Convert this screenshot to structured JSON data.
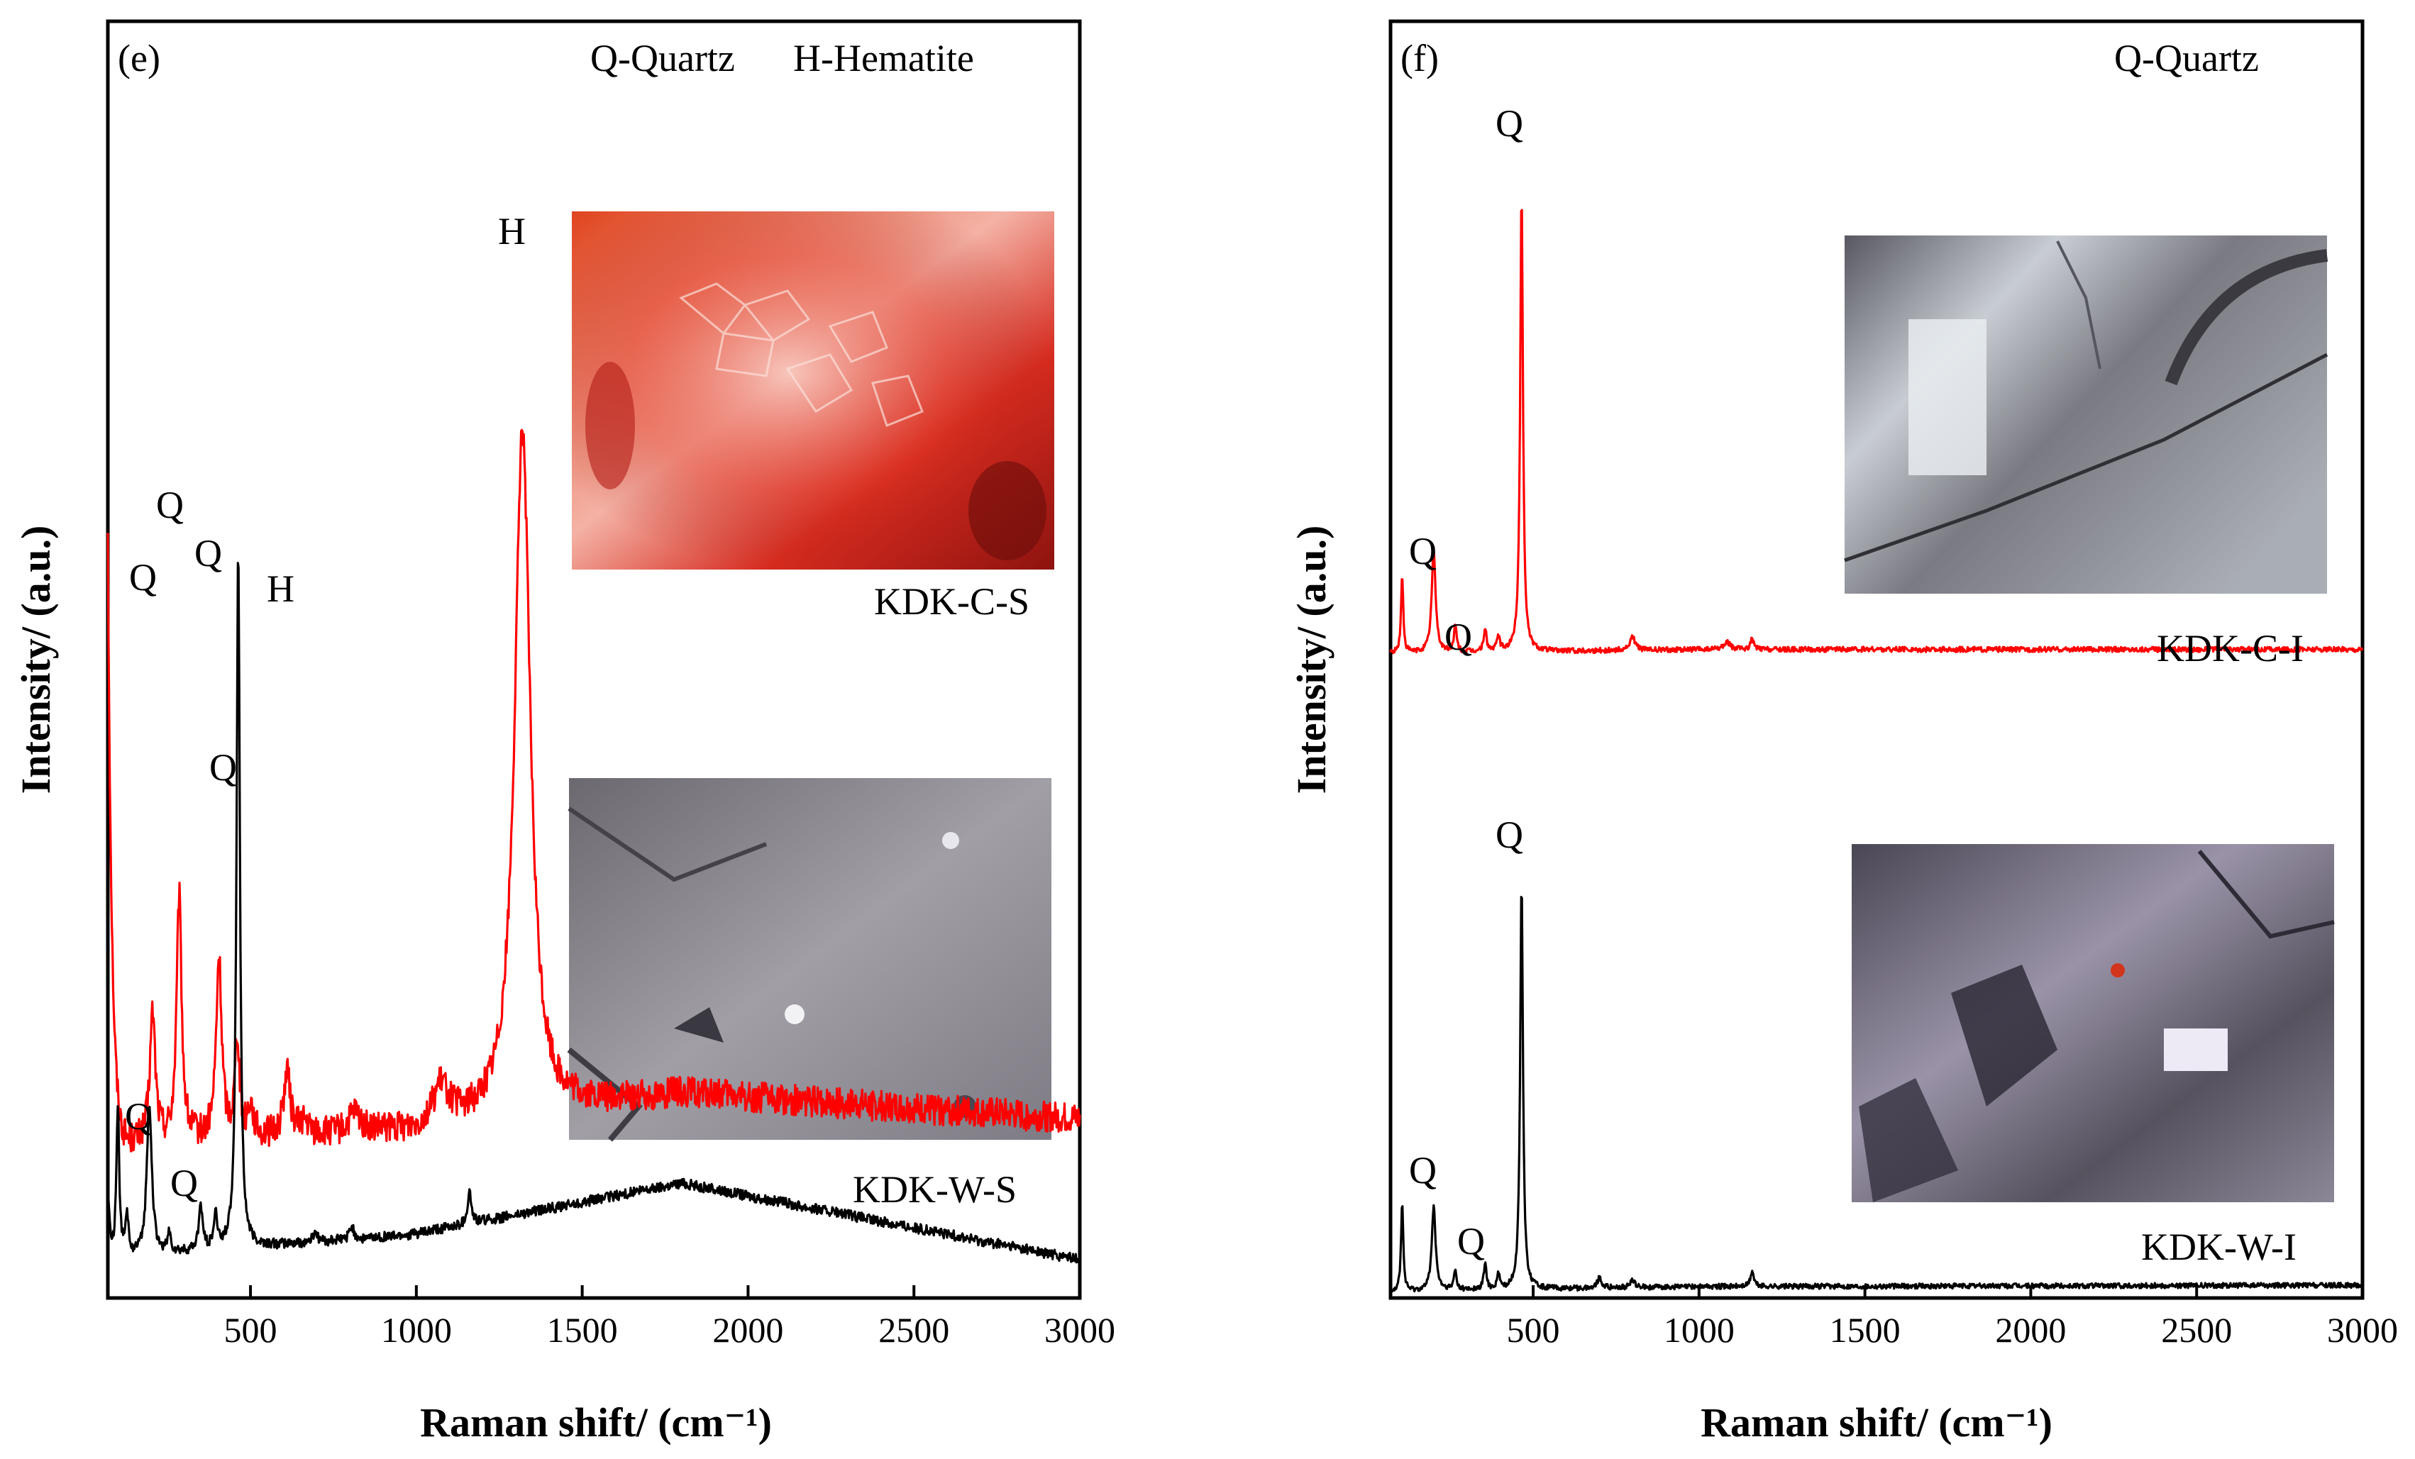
{
  "chart_data": [
    {
      "type": "line",
      "panel": "(e)",
      "legend": [
        "Q-Quartz",
        "H-Hematite"
      ],
      "xlabel": "Raman shift/ (cm⁻¹)",
      "ylabel": "Intensity/ (a.u.)",
      "xlim": [
        70,
        3000
      ],
      "xticks": [
        500,
        1000,
        1500,
        2000,
        2500,
        3000
      ],
      "series": [
        {
          "name": "KDK-C-S",
          "color": "#ff0000",
          "baseline": 0.12,
          "noise": 0.012,
          "edge": {
            "x": 70,
            "height": 0.48,
            "width": 12
          },
          "background": [
            [
              70,
              0.0
            ],
            [
              1000,
              0.01
            ],
            [
              1800,
              0.04
            ],
            [
              3000,
              0.02
            ]
          ],
          "peaks": [
            {
              "x": 205,
              "height": 0.1,
              "width": 10,
              "label": "Q"
            },
            {
              "x": 285,
              "height": 0.19,
              "width": 9,
              "label": "Q"
            },
            {
              "x": 405,
              "height": 0.14,
              "width": 10,
              "label": "Q"
            },
            {
              "x": 460,
              "height": 0.08,
              "width": 8
            },
            {
              "x": 500,
              "height": 0.025,
              "width": 10
            },
            {
              "x": 610,
              "height": 0.05,
              "width": 12,
              "label": "H"
            },
            {
              "x": 660,
              "height": 0.01,
              "width": 15
            },
            {
              "x": 815,
              "height": 0.015,
              "width": 20
            },
            {
              "x": 1075,
              "height": 0.03,
              "width": 30
            },
            {
              "x": 1320,
              "height": 0.54,
              "width": 28,
              "label": "H"
            }
          ]
        },
        {
          "name": "KDK-W-S",
          "color": "#000000",
          "baseline": 0.03,
          "noise": 0.004,
          "edge": {
            "x": 70,
            "height": 0.06,
            "width": 6
          },
          "background": [
            [
              70,
              0.0
            ],
            [
              1000,
              0.02
            ],
            [
              1800,
              0.06
            ],
            [
              3000,
              0.0
            ]
          ],
          "peaks": [
            {
              "x": 100,
              "height": 0.12,
              "width": 5
            },
            {
              "x": 128,
              "height": 0.03,
              "width": 6
            },
            {
              "x": 195,
              "height": 0.12,
              "width": 9,
              "label": "Q"
            },
            {
              "x": 255,
              "height": 0.015,
              "width": 6
            },
            {
              "x": 350,
              "height": 0.035,
              "width": 7,
              "label": "Q"
            },
            {
              "x": 395,
              "height": 0.025,
              "width": 7
            },
            {
              "x": 463,
              "height": 0.55,
              "width": 6,
              "label": "Q"
            },
            {
              "x": 695,
              "height": 0.008,
              "width": 8
            },
            {
              "x": 805,
              "height": 0.01,
              "width": 8
            },
            {
              "x": 1160,
              "height": 0.025,
              "width": 7
            }
          ]
        }
      ],
      "annotations": {
        "peak_letters": [
          "Q",
          "Q",
          "Q",
          "H",
          "H",
          "Q",
          "Q",
          "Q"
        ]
      }
    },
    {
      "type": "line",
      "panel": "(f)",
      "legend": [
        "Q-Quartz"
      ],
      "xlabel": "Raman shift/ (cm⁻¹)",
      "ylabel": "Intensity/ (a.u.)",
      "xlim": [
        70,
        3000
      ],
      "xticks": [
        500,
        1000,
        1500,
        2000,
        2500,
        3000
      ],
      "series": [
        {
          "name": "KDK-C-I",
          "color": "#ff0000",
          "baseline": 0.505,
          "noise": 0.002,
          "edge": {
            "x": 70,
            "height": 0.0,
            "width": 5
          },
          "background": [
            [
              70,
              0.0
            ],
            [
              1000,
              0.003
            ],
            [
              3000,
              0.003
            ]
          ],
          "peaks": [
            {
              "x": 105,
              "height": 0.06,
              "width": 4
            },
            {
              "x": 200,
              "height": 0.08,
              "width": 7,
              "label": "Q"
            },
            {
              "x": 265,
              "height": 0.02,
              "width": 5,
              "label": "Q"
            },
            {
              "x": 355,
              "height": 0.018,
              "width": 5
            },
            {
              "x": 395,
              "height": 0.012,
              "width": 5
            },
            {
              "x": 465,
              "height": 0.36,
              "width": 5,
              "label": "Q"
            },
            {
              "x": 800,
              "height": 0.01,
              "width": 10
            },
            {
              "x": 1085,
              "height": 0.006,
              "width": 10
            },
            {
              "x": 1160,
              "height": 0.008,
              "width": 6
            }
          ]
        },
        {
          "name": "KDK-W-I",
          "color": "#000000",
          "baseline": 0.005,
          "noise": 0.002,
          "edge": {
            "x": 70,
            "height": 0.0,
            "width": 5
          },
          "background": [
            [
              70,
              0.0
            ],
            [
              1000,
              0.004
            ],
            [
              3000,
              0.005
            ]
          ],
          "peaks": [
            {
              "x": 105,
              "height": 0.07,
              "width": 4
            },
            {
              "x": 200,
              "height": 0.065,
              "width": 7,
              "label": "Q"
            },
            {
              "x": 265,
              "height": 0.015,
              "width": 5
            },
            {
              "x": 355,
              "height": 0.02,
              "width": 5,
              "label": "Q"
            },
            {
              "x": 395,
              "height": 0.012,
              "width": 5
            },
            {
              "x": 465,
              "height": 0.32,
              "width": 5,
              "label": "Q"
            },
            {
              "x": 700,
              "height": 0.008,
              "width": 8
            },
            {
              "x": 800,
              "height": 0.006,
              "width": 8
            },
            {
              "x": 1160,
              "height": 0.012,
              "width": 6
            }
          ]
        }
      ],
      "annotations": {
        "peak_letters": [
          "Q",
          "Q",
          "Q",
          "Q",
          "Q",
          "Q"
        ]
      }
    }
  ],
  "insets": [
    {
      "name": "hematite-micrograph",
      "palette": [
        "#d8231c",
        "#f3a39a",
        "#8a1410"
      ]
    },
    {
      "name": "quartz-micrograph-w-s",
      "palette": [
        "#8d8a93",
        "#5e5b63",
        "#b9b6bd"
      ]
    },
    {
      "name": "quartz-micrograph-c-i",
      "palette": [
        "#7b7b82",
        "#4f4f55",
        "#b9bdc2"
      ]
    },
    {
      "name": "quartz-micrograph-w-i",
      "palette": [
        "#6f6a7a",
        "#3b3844",
        "#c5c1cc"
      ]
    }
  ]
}
